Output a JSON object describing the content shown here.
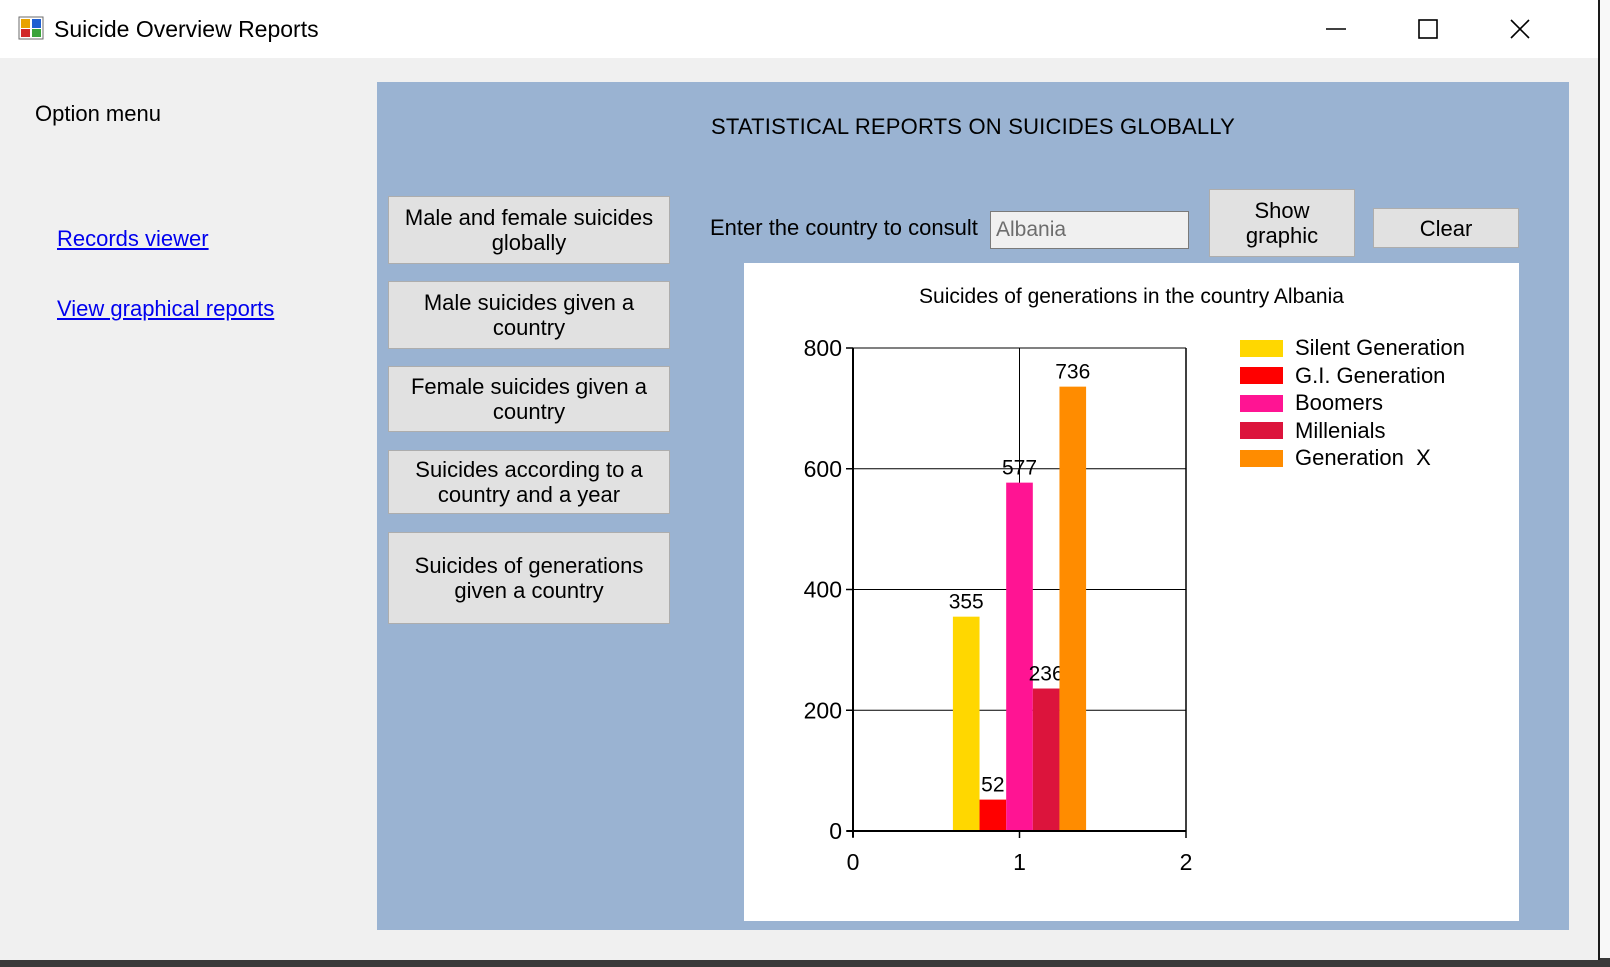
{
  "window": {
    "title": "Suicide Overview Reports"
  },
  "sidebar": {
    "heading": "Option menu",
    "links": [
      {
        "label": "Records viewer"
      },
      {
        "label": "View graphical reports"
      }
    ]
  },
  "panel": {
    "title": "STATISTICAL REPORTS ON SUICIDES GLOBALLY",
    "report_buttons": [
      {
        "label": "Male and female suicides globally"
      },
      {
        "label": "Male suicides given a country"
      },
      {
        "label": "Female suicides given a country"
      },
      {
        "label": "Suicides according to a country and a year"
      },
      {
        "label": "Suicides of generations given a country"
      }
    ],
    "country_label": "Enter the country to consult",
    "country_value": "Albania",
    "show_graphic_label": "Show graphic",
    "clear_label": "Clear"
  },
  "colors": {
    "panel_background": "#9ab3d2",
    "link": "#0000ee"
  },
  "chart_data": {
    "type": "bar",
    "title": "Suicides of generations in the country Albania",
    "xlabel": "",
    "ylabel": "",
    "xlim": [
      0,
      2
    ],
    "ylim": [
      0,
      800
    ],
    "x_ticks": [
      "0",
      "1",
      "2"
    ],
    "y_ticks": [
      "0",
      "200",
      "400",
      "600",
      "800"
    ],
    "grid": true,
    "legend_position": "top-right",
    "series": [
      {
        "name": "Silent Generation",
        "color": "#ffd700",
        "value": 355,
        "label": "355"
      },
      {
        "name": "G.I. Generation",
        "color": "#ff0000",
        "value": 52,
        "label": "52"
      },
      {
        "name": "Boomers",
        "color": "#ff1493",
        "value": 577,
        "label": "577"
      },
      {
        "name": "Millenials",
        "color": "#dc143c",
        "value": 236,
        "label": "236"
      },
      {
        "name": "Generation  X",
        "color": "#ff8c00",
        "value": 736,
        "label": "736"
      }
    ]
  }
}
